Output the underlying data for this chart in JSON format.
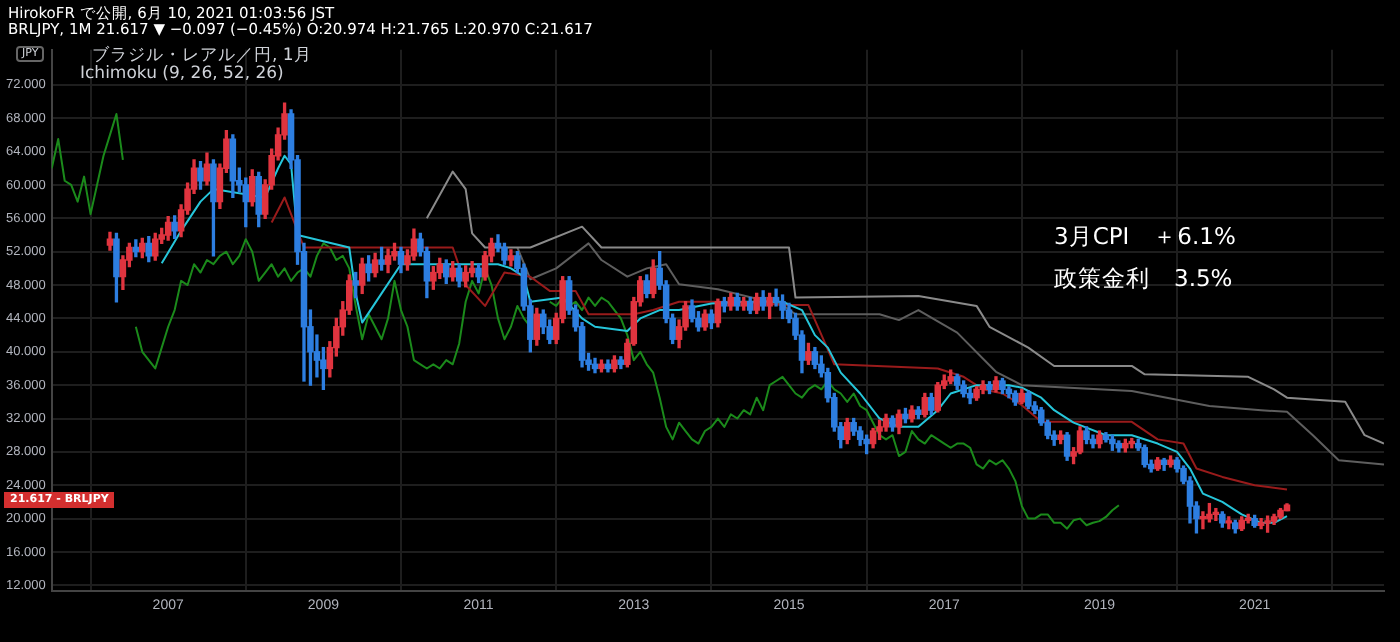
{
  "chart_data": {
    "type": "candlestick",
    "title": "ブラジル・レアル／円, 1月",
    "subtitle": "Ichimoku (9, 26, 52, 26)",
    "ylabel": "JPY",
    "annotations": [
      "HirokoFR で公開, 6月 10, 2021 01:03:56 JST",
      "BRLJPY, 1M 21.617 ▼ −0.097 (−0.45%) O:20.974 H:21.765 L:20.970 C:21.617",
      "3月CPI　＋6.1%",
      "政策金利　3.5%",
      "21.617 - BRLJPY"
    ],
    "x": [
      "2006-04",
      "2006-05",
      "2006-06",
      "2006-07",
      "2006-08",
      "2006-09",
      "2006-10",
      "2006-11",
      "2006-12",
      "2007-01",
      "2007-02",
      "2007-03",
      "2007-04",
      "2007-05",
      "2007-06",
      "2007-07",
      "2007-08",
      "2007-09",
      "2007-10",
      "2007-11",
      "2007-12",
      "2008-01",
      "2008-02",
      "2008-03",
      "2008-04",
      "2008-05",
      "2008-06",
      "2008-07",
      "2008-08",
      "2008-09",
      "2008-10",
      "2008-11",
      "2008-12",
      "2009-01",
      "2009-02",
      "2009-03",
      "2009-04",
      "2009-05",
      "2009-06",
      "2009-07",
      "2009-08",
      "2009-09",
      "2009-10",
      "2009-11",
      "2009-12",
      "2010-01",
      "2010-02",
      "2010-03",
      "2010-04",
      "2010-05",
      "2010-06",
      "2010-07",
      "2010-08",
      "2010-09",
      "2010-10",
      "2010-11",
      "2010-12",
      "2011-01",
      "2011-02",
      "2011-03",
      "2011-04",
      "2011-05",
      "2011-06",
      "2011-07",
      "2011-08",
      "2011-09",
      "2011-10",
      "2011-11",
      "2011-12",
      "2012-01",
      "2012-02",
      "2012-03",
      "2012-04",
      "2012-05",
      "2012-06",
      "2012-07",
      "2012-08",
      "2012-09",
      "2012-10",
      "2012-11",
      "2012-12",
      "2013-01",
      "2013-02",
      "2013-03",
      "2013-04",
      "2013-05",
      "2013-06",
      "2013-07",
      "2013-08",
      "2013-09",
      "2013-10",
      "2013-11",
      "2013-12",
      "2014-01",
      "2014-02",
      "2014-03",
      "2014-04",
      "2014-05",
      "2014-06",
      "2014-07",
      "2014-08",
      "2014-09",
      "2014-10",
      "2014-11",
      "2014-12",
      "2015-01",
      "2015-02",
      "2015-03",
      "2015-04",
      "2015-05",
      "2015-06",
      "2015-07",
      "2015-08",
      "2015-09",
      "2015-10",
      "2015-11",
      "2015-12",
      "2016-01",
      "2016-02",
      "2016-03",
      "2016-04",
      "2016-05",
      "2016-06",
      "2016-07",
      "2016-08",
      "2016-09",
      "2016-10",
      "2016-11",
      "2016-12",
      "2017-01",
      "2017-02",
      "2017-03",
      "2017-04",
      "2017-05",
      "2017-06",
      "2017-07",
      "2017-08",
      "2017-09",
      "2017-10",
      "2017-11",
      "2017-12",
      "2018-01",
      "2018-02",
      "2018-03",
      "2018-04",
      "2018-05",
      "2018-06",
      "2018-07",
      "2018-08",
      "2018-09",
      "2018-10",
      "2018-11",
      "2018-12",
      "2019-01",
      "2019-02",
      "2019-03",
      "2019-04",
      "2019-05",
      "2019-06",
      "2019-07",
      "2019-08",
      "2019-09",
      "2019-10",
      "2019-11",
      "2019-12",
      "2020-01",
      "2020-02",
      "2020-03",
      "2020-04",
      "2020-05",
      "2020-06",
      "2020-07",
      "2020-08",
      "2020-09",
      "2020-10",
      "2020-11",
      "2020-12",
      "2021-01",
      "2021-02",
      "2021-03",
      "2021-04",
      "2021-05",
      "2021-06"
    ],
    "ohlc": [
      [
        52.8,
        54.3,
        52.2,
        53.5
      ],
      [
        53.5,
        54.2,
        46.0,
        49.0
      ],
      [
        49.0,
        51.5,
        47.5,
        51.0
      ],
      [
        51.0,
        53.0,
        50.2,
        52.5
      ],
      [
        52.5,
        53.4,
        51.4,
        52.0
      ],
      [
        52.0,
        53.6,
        51.3,
        53.0
      ],
      [
        53.0,
        53.8,
        50.8,
        51.5
      ],
      [
        51.5,
        54.2,
        51.0,
        53.5
      ],
      [
        53.5,
        54.8,
        53.0,
        54.0
      ],
      [
        54.0,
        56.2,
        53.4,
        55.5
      ],
      [
        55.5,
        56.3,
        53.6,
        54.5
      ],
      [
        54.5,
        57.6,
        53.8,
        57.0
      ],
      [
        57.0,
        60.2,
        56.5,
        59.5
      ],
      [
        59.5,
        63.0,
        59.0,
        62.0
      ],
      [
        62.0,
        62.8,
        59.5,
        60.5
      ],
      [
        60.5,
        63.8,
        60.0,
        62.5
      ],
      [
        62.5,
        63.0,
        51.5,
        58.0
      ],
      [
        58.0,
        62.5,
        57.2,
        62.0
      ],
      [
        62.0,
        66.5,
        61.5,
        65.5
      ],
      [
        65.5,
        66.0,
        58.5,
        60.5
      ],
      [
        60.5,
        62.0,
        59.2,
        60.0
      ],
      [
        60.0,
        60.8,
        55.0,
        58.0
      ],
      [
        58.0,
        61.8,
        57.5,
        61.0
      ],
      [
        61.0,
        61.5,
        55.0,
        56.5
      ],
      [
        56.5,
        60.6,
        56.0,
        60.0
      ],
      [
        60.0,
        64.3,
        59.5,
        63.5
      ],
      [
        63.5,
        66.8,
        63.0,
        66.0
      ],
      [
        66.0,
        69.8,
        65.5,
        68.5
      ],
      [
        68.5,
        69.0,
        62.0,
        63.0
      ],
      [
        63.0,
        63.5,
        50.5,
        52.0
      ],
      [
        52.0,
        53.0,
        36.5,
        43.0
      ],
      [
        43.0,
        45.0,
        36.0,
        40.0
      ],
      [
        40.0,
        42.0,
        37.0,
        39.0
      ],
      [
        39.0,
        40.5,
        35.5,
        38.0
      ],
      [
        38.0,
        41.2,
        37.0,
        40.5
      ],
      [
        40.5,
        44.0,
        39.5,
        43.0
      ],
      [
        43.0,
        46.0,
        42.0,
        45.0
      ],
      [
        45.0,
        49.2,
        44.5,
        48.5
      ],
      [
        48.5,
        49.5,
        46.5,
        48.0
      ],
      [
        48.0,
        51.2,
        47.0,
        50.5
      ],
      [
        50.5,
        51.5,
        48.5,
        49.5
      ],
      [
        49.5,
        51.8,
        49.0,
        51.0
      ],
      [
        51.0,
        52.5,
        49.8,
        50.5
      ],
      [
        50.5,
        52.3,
        49.5,
        51.5
      ],
      [
        51.5,
        53.0,
        51.0,
        52.0
      ],
      [
        52.0,
        52.5,
        49.5,
        50.5
      ],
      [
        50.5,
        52.2,
        49.8,
        51.5
      ],
      [
        51.5,
        54.7,
        51.0,
        53.5
      ],
      [
        53.5,
        54.2,
        51.5,
        52.0
      ],
      [
        52.0,
        52.5,
        46.5,
        48.5
      ],
      [
        48.5,
        50.2,
        47.5,
        49.5
      ],
      [
        49.5,
        51.2,
        48.8,
        50.5
      ],
      [
        50.5,
        51.0,
        48.2,
        49.0
      ],
      [
        49.0,
        50.8,
        48.5,
        50.0
      ],
      [
        50.0,
        50.5,
        47.8,
        48.5
      ],
      [
        48.5,
        50.3,
        47.8,
        49.5
      ],
      [
        49.5,
        50.8,
        49.0,
        50.0
      ],
      [
        50.0,
        50.5,
        48.3,
        49.0
      ],
      [
        49.0,
        52.0,
        48.6,
        51.5
      ],
      [
        51.5,
        53.6,
        50.8,
        53.0
      ],
      [
        53.0,
        54.0,
        52.0,
        52.5
      ],
      [
        52.5,
        53.0,
        50.5,
        51.0
      ],
      [
        51.0,
        52.2,
        50.3,
        51.5
      ],
      [
        51.5,
        52.0,
        49.5,
        50.0
      ],
      [
        50.0,
        50.5,
        45.0,
        45.5
      ],
      [
        45.5,
        46.2,
        40.0,
        41.5
      ],
      [
        41.5,
        45.2,
        40.8,
        44.5
      ],
      [
        44.5,
        45.0,
        42.2,
        43.0
      ],
      [
        43.0,
        43.8,
        41.0,
        41.5
      ],
      [
        41.5,
        44.6,
        41.0,
        44.0
      ],
      [
        44.0,
        49.0,
        43.5,
        48.5
      ],
      [
        48.5,
        49.0,
        44.5,
        45.0
      ],
      [
        45.0,
        45.6,
        42.5,
        43.0
      ],
      [
        43.0,
        43.5,
        38.2,
        39.0
      ],
      [
        39.0,
        39.8,
        37.8,
        38.5
      ],
      [
        38.5,
        39.2,
        37.5,
        38.0
      ],
      [
        38.0,
        39.0,
        37.6,
        38.5
      ],
      [
        38.5,
        39.0,
        37.6,
        38.0
      ],
      [
        38.0,
        39.5,
        37.6,
        39.0
      ],
      [
        39.0,
        39.4,
        38.0,
        38.5
      ],
      [
        38.5,
        41.5,
        38.2,
        41.0
      ],
      [
        41.0,
        46.5,
        40.8,
        46.0
      ],
      [
        46.0,
        49.0,
        45.5,
        48.5
      ],
      [
        48.5,
        49.2,
        46.5,
        47.0
      ],
      [
        47.0,
        51.0,
        46.5,
        50.0
      ],
      [
        50.0,
        52.0,
        47.5,
        48.0
      ],
      [
        48.0,
        48.5,
        43.5,
        44.0
      ],
      [
        44.0,
        44.5,
        41.0,
        41.5
      ],
      [
        41.5,
        43.8,
        40.5,
        43.0
      ],
      [
        43.0,
        46.0,
        42.6,
        45.5
      ],
      [
        45.5,
        46.2,
        43.6,
        44.0
      ],
      [
        44.0,
        44.8,
        42.5,
        43.0
      ],
      [
        43.0,
        45.0,
        42.6,
        44.5
      ],
      [
        44.5,
        45.0,
        42.8,
        43.5
      ],
      [
        43.5,
        46.3,
        43.0,
        46.0
      ],
      [
        46.0,
        46.5,
        44.8,
        45.5
      ],
      [
        45.5,
        47.0,
        45.0,
        46.5
      ],
      [
        46.5,
        47.0,
        45.0,
        45.5
      ],
      [
        45.5,
        46.5,
        45.0,
        46.0
      ],
      [
        46.0,
        46.5,
        44.6,
        45.0
      ],
      [
        45.0,
        47.0,
        44.6,
        46.5
      ],
      [
        46.5,
        47.3,
        45.0,
        45.5
      ],
      [
        45.5,
        47.0,
        44.0,
        46.5
      ],
      [
        46.5,
        47.5,
        45.5,
        46.0
      ],
      [
        46.0,
        46.8,
        44.0,
        45.0
      ],
      [
        45.0,
        45.8,
        43.5,
        44.0
      ],
      [
        44.0,
        44.6,
        41.5,
        42.0
      ],
      [
        42.0,
        42.5,
        37.5,
        39.0
      ],
      [
        39.0,
        41.0,
        38.5,
        40.0
      ],
      [
        40.0,
        40.5,
        38.0,
        38.5
      ],
      [
        38.5,
        39.5,
        37.0,
        37.5
      ],
      [
        37.5,
        38.0,
        34.0,
        34.5
      ],
      [
        34.5,
        35.0,
        30.5,
        31.0
      ],
      [
        31.0,
        31.5,
        28.5,
        29.5
      ],
      [
        29.5,
        32.0,
        29.0,
        31.5
      ],
      [
        31.5,
        32.0,
        30.0,
        30.5
      ],
      [
        30.5,
        31.0,
        28.8,
        29.5
      ],
      [
        29.5,
        30.0,
        27.8,
        29.0
      ],
      [
        29.0,
        30.8,
        28.5,
        30.5
      ],
      [
        30.5,
        31.8,
        29.5,
        31.0
      ],
      [
        31.0,
        32.5,
        30.5,
        32.0
      ],
      [
        32.0,
        32.3,
        30.5,
        31.0
      ],
      [
        31.0,
        33.0,
        30.2,
        32.5
      ],
      [
        32.5,
        33.2,
        31.5,
        32.0
      ],
      [
        32.0,
        33.5,
        31.6,
        33.0
      ],
      [
        33.0,
        33.4,
        32.0,
        32.5
      ],
      [
        32.5,
        35.0,
        32.2,
        34.5
      ],
      [
        34.5,
        35.0,
        32.5,
        33.0
      ],
      [
        33.0,
        36.3,
        32.8,
        36.0
      ],
      [
        36.0,
        37.2,
        35.6,
        36.5
      ],
      [
        36.5,
        37.8,
        36.2,
        37.0
      ],
      [
        37.0,
        37.3,
        35.5,
        36.0
      ],
      [
        36.0,
        36.5,
        34.6,
        35.0
      ],
      [
        35.0,
        35.6,
        33.8,
        34.5
      ],
      [
        34.5,
        35.8,
        34.2,
        35.5
      ],
      [
        35.5,
        36.5,
        35.0,
        36.0
      ],
      [
        36.0,
        36.4,
        35.0,
        35.5
      ],
      [
        35.5,
        37.0,
        35.2,
        36.5
      ],
      [
        36.5,
        36.8,
        35.0,
        35.5
      ],
      [
        35.5,
        35.8,
        34.5,
        35.0
      ],
      [
        35.0,
        35.3,
        33.6,
        34.0
      ],
      [
        34.0,
        35.5,
        33.8,
        35.0
      ],
      [
        35.0,
        35.3,
        33.2,
        33.5
      ],
      [
        33.5,
        34.0,
        32.6,
        33.0
      ],
      [
        33.0,
        33.3,
        31.2,
        31.5
      ],
      [
        31.5,
        31.8,
        29.6,
        30.0
      ],
      [
        30.0,
        30.5,
        28.8,
        29.5
      ],
      [
        29.5,
        30.5,
        29.0,
        30.0
      ],
      [
        30.0,
        30.3,
        27.0,
        27.5
      ],
      [
        27.5,
        28.5,
        26.6,
        28.0
      ],
      [
        28.0,
        31.0,
        27.8,
        30.5
      ],
      [
        30.5,
        31.0,
        29.0,
        29.5
      ],
      [
        29.5,
        30.0,
        28.5,
        29.0
      ],
      [
        29.0,
        30.5,
        28.5,
        30.0
      ],
      [
        30.0,
        30.3,
        29.2,
        29.5
      ],
      [
        29.5,
        30.0,
        28.2,
        29.0
      ],
      [
        29.0,
        29.3,
        28.0,
        28.5
      ],
      [
        28.5,
        29.5,
        28.0,
        29.0
      ],
      [
        29.0,
        29.6,
        28.5,
        29.0
      ],
      [
        29.0,
        29.5,
        28.2,
        28.5
      ],
      [
        28.5,
        28.8,
        26.2,
        26.5
      ],
      [
        26.5,
        27.0,
        25.6,
        26.0
      ],
      [
        26.0,
        27.3,
        25.8,
        27.0
      ],
      [
        27.0,
        27.2,
        25.8,
        26.5
      ],
      [
        26.5,
        27.5,
        26.2,
        27.0
      ],
      [
        27.0,
        27.3,
        25.6,
        26.0
      ],
      [
        26.0,
        26.3,
        24.2,
        24.5
      ],
      [
        24.5,
        25.0,
        19.5,
        21.5
      ],
      [
        21.5,
        22.0,
        18.3,
        20.0
      ],
      [
        20.0,
        20.8,
        18.8,
        20.0
      ],
      [
        20.0,
        21.8,
        19.6,
        20.5
      ],
      [
        20.5,
        21.2,
        19.8,
        20.5
      ],
      [
        20.5,
        20.8,
        19.0,
        19.5
      ],
      [
        19.5,
        20.2,
        18.8,
        19.5
      ],
      [
        19.5,
        19.8,
        18.3,
        18.8
      ],
      [
        18.8,
        20.2,
        18.6,
        19.8
      ],
      [
        19.8,
        20.5,
        19.5,
        20.0
      ],
      [
        20.0,
        20.4,
        19.0,
        19.2
      ],
      [
        19.2,
        20.0,
        18.8,
        19.5
      ],
      [
        19.5,
        20.3,
        18.4,
        19.7
      ],
      [
        19.7,
        20.5,
        19.3,
        20.2
      ],
      [
        20.2,
        21.2,
        20.0,
        20.974
      ],
      [
        20.974,
        21.765,
        20.97,
        21.617
      ]
    ],
    "colors": [
      "#e0343f",
      "#2d7ee0",
      "#e0343f",
      "#e0343f",
      "#2d7ee0",
      "#e0343f",
      "#2d7ee0",
      "#e0343f",
      "#e0343f",
      "#e0343f",
      "#2d7ee0",
      "#e0343f",
      "#e0343f",
      "#e0343f",
      "#2d7ee0",
      "#e0343f",
      "#2d7ee0",
      "#e0343f",
      "#e0343f",
      "#2d7ee0",
      "#2d7ee0",
      "#2d7ee0",
      "#e0343f",
      "#2d7ee0",
      "#e0343f",
      "#e0343f",
      "#e0343f",
      "#e0343f",
      "#2d7ee0",
      "#2d7ee0",
      "#2d7ee0",
      "#2d7ee0",
      "#2d7ee0",
      "#2d7ee0",
      "#e0343f",
      "#e0343f",
      "#e0343f",
      "#e0343f",
      "#2d7ee0",
      "#e0343f",
      "#2d7ee0",
      "#e0343f",
      "#2d7ee0",
      "#e0343f",
      "#e0343f",
      "#2d7ee0",
      "#e0343f",
      "#e0343f",
      "#2d7ee0",
      "#2d7ee0",
      "#e0343f",
      "#e0343f",
      "#2d7ee0",
      "#e0343f",
      "#2d7ee0",
      "#e0343f",
      "#e0343f",
      "#2d7ee0",
      "#e0343f",
      "#e0343f",
      "#2d7ee0",
      "#2d7ee0",
      "#e0343f",
      "#2d7ee0",
      "#2d7ee0",
      "#2d7ee0",
      "#e0343f",
      "#2d7ee0",
      "#2d7ee0",
      "#e0343f",
      "#e0343f",
      "#2d7ee0",
      "#2d7ee0",
      "#2d7ee0",
      "#2d7ee0",
      "#2d7ee0",
      "#e0343f",
      "#2d7ee0",
      "#e0343f",
      "#2d7ee0",
      "#e0343f",
      "#e0343f",
      "#e0343f",
      "#2d7ee0",
      "#e0343f",
      "#2d7ee0",
      "#2d7ee0",
      "#2d7ee0",
      "#e0343f",
      "#e0343f",
      "#2d7ee0",
      "#2d7ee0",
      "#e0343f",
      "#2d7ee0",
      "#e0343f",
      "#2d7ee0",
      "#e0343f",
      "#2d7ee0",
      "#e0343f",
      "#2d7ee0",
      "#e0343f",
      "#2d7ee0",
      "#e0343f",
      "#2d7ee0",
      "#2d7ee0",
      "#2d7ee0",
      "#2d7ee0",
      "#2d7ee0",
      "#e0343f",
      "#2d7ee0",
      "#2d7ee0",
      "#2d7ee0",
      "#2d7ee0",
      "#2d7ee0",
      "#e0343f",
      "#2d7ee0",
      "#2d7ee0",
      "#2d7ee0",
      "#e0343f",
      "#e0343f",
      "#e0343f",
      "#2d7ee0",
      "#e0343f",
      "#2d7ee0",
      "#e0343f",
      "#2d7ee0",
      "#e0343f",
      "#2d7ee0",
      "#e0343f",
      "#e0343f",
      "#e0343f",
      "#2d7ee0",
      "#2d7ee0",
      "#2d7ee0",
      "#e0343f",
      "#e0343f",
      "#2d7ee0",
      "#e0343f",
      "#2d7ee0",
      "#2d7ee0",
      "#2d7ee0",
      "#e0343f",
      "#2d7ee0",
      "#2d7ee0",
      "#2d7ee0",
      "#2d7ee0",
      "#2d7ee0",
      "#e0343f",
      "#2d7ee0",
      "#e0343f",
      "#e0343f",
      "#2d7ee0",
      "#2d7ee0",
      "#e0343f",
      "#2d7ee0",
      "#2d7ee0",
      "#2d7ee0",
      "#e0343f",
      "#e0343f",
      "#2d7ee0",
      "#2d7ee0",
      "#2d7ee0",
      "#e0343f",
      "#2d7ee0",
      "#e0343f",
      "#2d7ee0",
      "#2d7ee0",
      "#2d7ee0",
      "#2d7ee0",
      "#e0343f",
      "#e0343f",
      "#e0343f",
      "#2d7ee0",
      "#e0343f",
      "#2d7ee0",
      "#e0343f",
      "#e0343f",
      "#2d7ee0",
      "#e0343f",
      "#e0343f",
      "#e0343f",
      "#e0343f",
      "#e0343f"
    ],
    "series": [
      {
        "type": "line",
        "color": "#26c6da",
        "x": [
          "2006-12",
          "2007-03",
          "2007-06",
          "2007-08",
          "2008-04",
          "2008-06",
          "2008-07",
          "2008-08",
          "2008-09",
          "2009-05",
          "2009-06",
          "2009-07",
          "2009-10",
          "2010-01",
          "2010-06",
          "2010-09",
          "2011-04",
          "2011-06",
          "2011-08",
          "2011-09",
          "2012-02",
          "2012-05",
          "2012-07",
          "2012-12",
          "2013-02",
          "2013-05",
          "2013-08",
          "2014-01",
          "2014-06",
          "2014-12",
          "2015-03",
          "2015-05",
          "2015-07",
          "2015-09",
          "2015-12",
          "2016-03",
          "2016-06",
          "2016-09",
          "2016-12",
          "2017-02",
          "2017-06",
          "2017-11",
          "2018-01",
          "2018-04",
          "2018-06",
          "2018-09",
          "2019-02",
          "2019-06",
          "2019-10",
          "2020-01",
          "2020-03",
          "2020-05",
          "2020-08",
          "2020-11",
          "2021-02",
          "2021-04",
          "2021-06"
        ],
        "values": [
          50.6,
          54.5,
          58,
          59.5,
          58.5,
          62,
          63.5,
          62.5,
          54,
          52.5,
          47,
          43.5,
          47,
          50.5,
          50.5,
          50.5,
          50.5,
          50,
          49,
          46,
          46.5,
          44,
          43,
          42.5,
          44,
          45,
          45,
          45.8,
          46,
          46,
          45,
          42,
          40.5,
          37.5,
          35,
          32,
          31,
          31,
          33,
          35,
          36,
          36,
          35.7,
          34.5,
          33,
          31.5,
          30,
          30,
          29,
          28,
          26,
          23,
          22,
          20.5,
          19.5,
          19.5,
          20.3
        ]
      },
      {
        "type": "line",
        "color": "#991b1b",
        "x": [
          "2008-05",
          "2008-07",
          "2008-10",
          "2010-09",
          "2010-11",
          "2011-02",
          "2011-05",
          "2011-09",
          "2011-12",
          "2012-04",
          "2012-06",
          "2013-01",
          "2013-04",
          "2013-08",
          "2014-06",
          "2014-12",
          "2015-04",
          "2015-08",
          "2016-12",
          "2017-04",
          "2017-07",
          "2017-10",
          "2018-01",
          "2018-04",
          "2019-06",
          "2019-10",
          "2020-02",
          "2020-04",
          "2020-08",
          "2021-01",
          "2021-06"
        ],
        "values": [
          55.5,
          58.5,
          52.5,
          52.5,
          48,
          45.5,
          49.5,
          49,
          47.3,
          47.3,
          44.5,
          44.5,
          45,
          46,
          46,
          45.6,
          45.6,
          38.5,
          38,
          37,
          35.5,
          35,
          33.6,
          31.6,
          31.6,
          29.5,
          29,
          26,
          25,
          24,
          23.5
        ]
      },
      {
        "type": "line",
        "color": "#1b8a1b",
        "x": [
          "2005-07",
          "2005-08",
          "2005-09",
          "2005-10",
          "2005-11",
          "2005-12",
          "2006-01",
          "2006-02",
          "2006-03",
          "2006-04",
          "2006-05",
          "2006-06",
          "2006-07",
          "2006-08",
          "2006-09",
          "2006-10",
          "2006-11",
          "2006-12",
          "2007-01",
          "2007-02",
          "2007-03",
          "2007-04",
          "2007-05",
          "2007-06",
          "2007-07",
          "2007-08",
          "2007-09",
          "2007-10",
          "2007-11",
          "2007-12",
          "2008-01",
          "2008-02",
          "2008-03",
          "2008-04",
          "2008-05",
          "2008-06",
          "2008-07",
          "2008-08",
          "2008-09",
          "2008-10",
          "2008-11",
          "2008-12",
          "2009-01",
          "2009-02",
          "2009-03",
          "2009-04",
          "2009-05",
          "2009-06",
          "2009-07",
          "2009-08",
          "2009-09",
          "2009-10",
          "2009-11",
          "2009-12",
          "2010-01",
          "2010-02",
          "2010-03",
          "2010-04",
          "2010-05",
          "2010-06",
          "2010-07",
          "2010-08",
          "2010-09",
          "2010-10",
          "2010-11",
          "2010-12",
          "2011-01",
          "2011-02",
          "2011-03",
          "2011-04",
          "2011-05",
          "2011-06",
          "2011-07",
          "2011-08",
          "2011-09",
          "2011-10",
          "2011-11",
          "2011-12",
          "2012-01",
          "2012-02",
          "2012-03",
          "2012-04",
          "2012-05",
          "2012-06",
          "2012-07",
          "2012-08",
          "2012-09",
          "2012-10",
          "2012-11",
          "2012-12",
          "2013-01",
          "2013-02",
          "2013-03",
          "2013-04",
          "2013-05",
          "2013-06",
          "2013-07",
          "2013-08",
          "2013-09",
          "2013-10",
          "2013-11",
          "2013-12",
          "2014-01",
          "2014-02",
          "2014-03",
          "2014-04",
          "2014-05",
          "2014-06",
          "2014-07",
          "2014-08",
          "2014-09",
          "2014-10",
          "2014-11",
          "2014-12",
          "2015-01",
          "2015-02",
          "2015-03",
          "2015-04",
          "2015-05",
          "2015-06",
          "2015-07",
          "2015-08",
          "2015-09",
          "2015-10",
          "2015-11",
          "2015-12",
          "2016-01",
          "2016-02",
          "2016-03",
          "2016-04",
          "2016-05",
          "2016-06",
          "2016-07",
          "2016-08",
          "2016-09",
          "2016-10",
          "2016-11",
          "2016-12",
          "2017-01",
          "2017-02",
          "2017-03",
          "2017-04",
          "2017-05",
          "2017-06",
          "2017-07",
          "2017-08",
          "2017-09",
          "2017-10",
          "2017-11",
          "2017-12",
          "2018-01",
          "2018-02",
          "2018-03",
          "2018-04",
          "2018-05",
          "2018-06",
          "2018-07",
          "2018-08",
          "2018-09",
          "2018-10",
          "2018-11",
          "2018-12",
          "2019-01",
          "2019-02",
          "2019-03",
          "2019-04"
        ],
        "values": [
          62.0,
          65.5,
          60.5,
          60.0,
          58.0,
          61.0,
          56.5,
          60.0,
          63.5,
          66.0,
          68.5,
          63.0,
          null,
          43.0,
          40.0,
          39.0,
          38.0,
          40.5,
          43.0,
          45.0,
          48.5,
          48.0,
          50.5,
          49.5,
          51.0,
          50.5,
          51.5,
          52.0,
          50.5,
          51.5,
          53.5,
          52.0,
          48.5,
          49.5,
          50.5,
          49.0,
          50.0,
          48.5,
          49.5,
          50.0,
          49.0,
          51.5,
          53.0,
          52.5,
          51.0,
          51.5,
          50.0,
          45.5,
          41.5,
          44.5,
          43.0,
          41.5,
          44.0,
          48.5,
          45.0,
          43.0,
          39.0,
          38.5,
          38.0,
          38.5,
          38.0,
          39.0,
          38.5,
          41.0,
          46.0,
          48.5,
          47.0,
          50.0,
          48.0,
          44.0,
          41.5,
          43.0,
          45.5,
          44.0,
          43.0,
          null,
          null,
          46.0,
          45.5,
          46.5,
          45.5,
          46.0,
          45.0,
          46.5,
          45.5,
          46.5,
          46.0,
          45.0,
          44.0,
          42.0,
          39.0,
          40.0,
          38.5,
          37.5,
          34.5,
          31.0,
          29.5,
          31.5,
          30.5,
          29.5,
          29.0,
          30.5,
          31.0,
          32.0,
          31.0,
          32.5,
          32.0,
          33.0,
          32.5,
          34.5,
          33.0,
          36.0,
          36.5,
          37.0,
          36.0,
          35.0,
          34.5,
          35.5,
          36.0,
          35.5,
          36.5,
          35.5,
          35.0,
          34.0,
          35.0,
          33.5,
          33.0,
          31.5,
          30.0,
          29.5,
          30.0,
          27.5,
          28.0,
          30.5,
          29.5,
          29.0,
          30.0,
          29.5,
          29.0,
          28.5,
          29.0,
          29.0,
          28.5,
          26.5,
          26.0,
          27.0,
          26.5,
          27.0,
          26.0,
          24.5,
          21.5,
          20.0,
          20.0,
          20.5,
          20.5,
          19.5,
          19.5,
          18.8,
          19.8,
          20.0,
          19.2,
          19.5,
          19.7,
          20.2,
          21.0,
          21.6
        ]
      },
      {
        "type": "line",
        "color": "#8a8a8a",
        "x": [
          "2010-05",
          "2010-09",
          "2010-11",
          "2010-12",
          "2011-02",
          "2011-09",
          "2012-05",
          "2012-08",
          "2015-01",
          "2015-02",
          "2016-09",
          "2017-06",
          "2017-08",
          "2018-02",
          "2018-06",
          "2019-06",
          "2019-08",
          "2020-12",
          "2021-04",
          "2021-06",
          "2022-03",
          "2022-06",
          "2022-09"
        ],
        "values": [
          56,
          61.6,
          59.5,
          54.2,
          52.5,
          52.5,
          55,
          52.5,
          52.5,
          46.5,
          46.7,
          45.5,
          43,
          40.5,
          38.3,
          38.3,
          37.3,
          37,
          35.5,
          34.5,
          34,
          30,
          29
        ]
      },
      {
        "type": "line",
        "color": "#5e5e5e",
        "x": [
          "2011-07",
          "2011-09",
          "2012-01",
          "2012-06",
          "2012-08",
          "2012-12",
          "2013-03",
          "2013-06",
          "2013-08",
          "2014-02",
          "2014-12",
          "2015-02",
          "2016-03",
          "2016-06",
          "2016-09",
          "2017-03",
          "2017-09",
          "2018-01",
          "2019-06",
          "2020-06",
          "2021-02",
          "2021-06",
          "2021-10",
          "2022-02",
          "2022-09"
        ],
        "values": [
          52.5,
          48.7,
          50,
          53,
          51,
          49,
          50,
          50.5,
          48.1,
          47.5,
          45.6,
          44.5,
          44.5,
          43.8,
          45,
          42.3,
          37.6,
          36,
          35.3,
          33.5,
          33,
          32.8,
          30,
          27,
          26.5
        ]
      }
    ],
    "xlim": [
      "2005-07",
      "2022-09"
    ],
    "xticks": [
      "2007",
      "2009",
      "2011",
      "2013",
      "2015",
      "2017",
      "2019",
      "2021"
    ],
    "ylim": [
      11.3,
      76.2
    ],
    "yticks": [
      {
        "value": 12,
        "label": "12.000"
      },
      {
        "value": 16,
        "label": "16.000"
      },
      {
        "value": 20,
        "label": "20.000"
      },
      {
        "value": 24,
        "label": "24.000"
      },
      {
        "value": 28,
        "label": "28.000"
      },
      {
        "value": 32,
        "label": "32.000"
      },
      {
        "value": 36,
        "label": "36.000"
      },
      {
        "value": 40,
        "label": "40.000"
      },
      {
        "value": 44,
        "label": "44.000"
      },
      {
        "value": 48,
        "label": "48.000"
      },
      {
        "value": 52,
        "label": "52.000"
      },
      {
        "value": 56,
        "label": "56.000"
      },
      {
        "value": 60,
        "label": "60.000"
      },
      {
        "value": 64,
        "label": "64.000"
      },
      {
        "value": 68,
        "label": "68.000"
      },
      {
        "value": 72,
        "label": "72.000"
      }
    ],
    "grid": true,
    "legend": false
  }
}
